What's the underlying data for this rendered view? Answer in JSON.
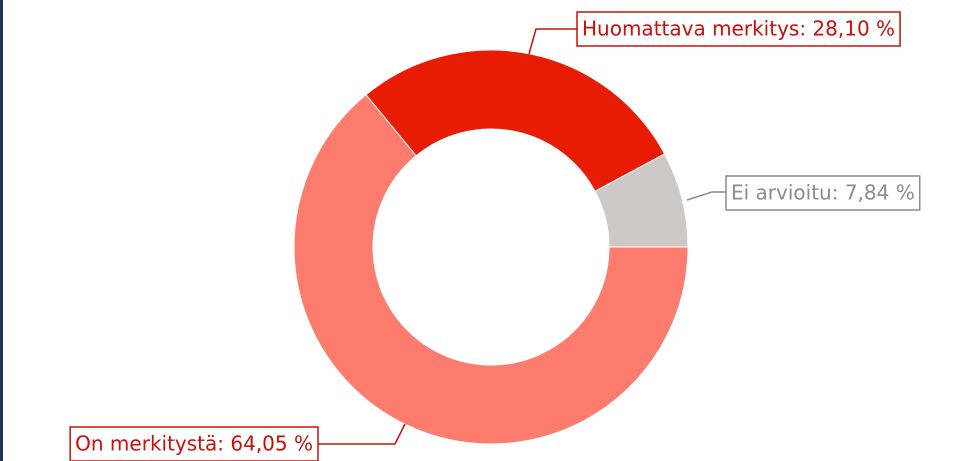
{
  "chart_data": {
    "type": "donut",
    "values": [
      7.84,
      28.1,
      64.05
    ],
    "value_labels": [
      "Ei arvioitu: 7,84 %",
      "Huomattava merkitys: 28,10 %",
      "On merkitystä: 64,05 %"
    ],
    "colors": [
      "#cdc9c7",
      "#e81c03",
      "#fe7c6e"
    ],
    "label_colors": [
      "#8c8c8c",
      "#c8100a",
      "#c8100a"
    ]
  }
}
